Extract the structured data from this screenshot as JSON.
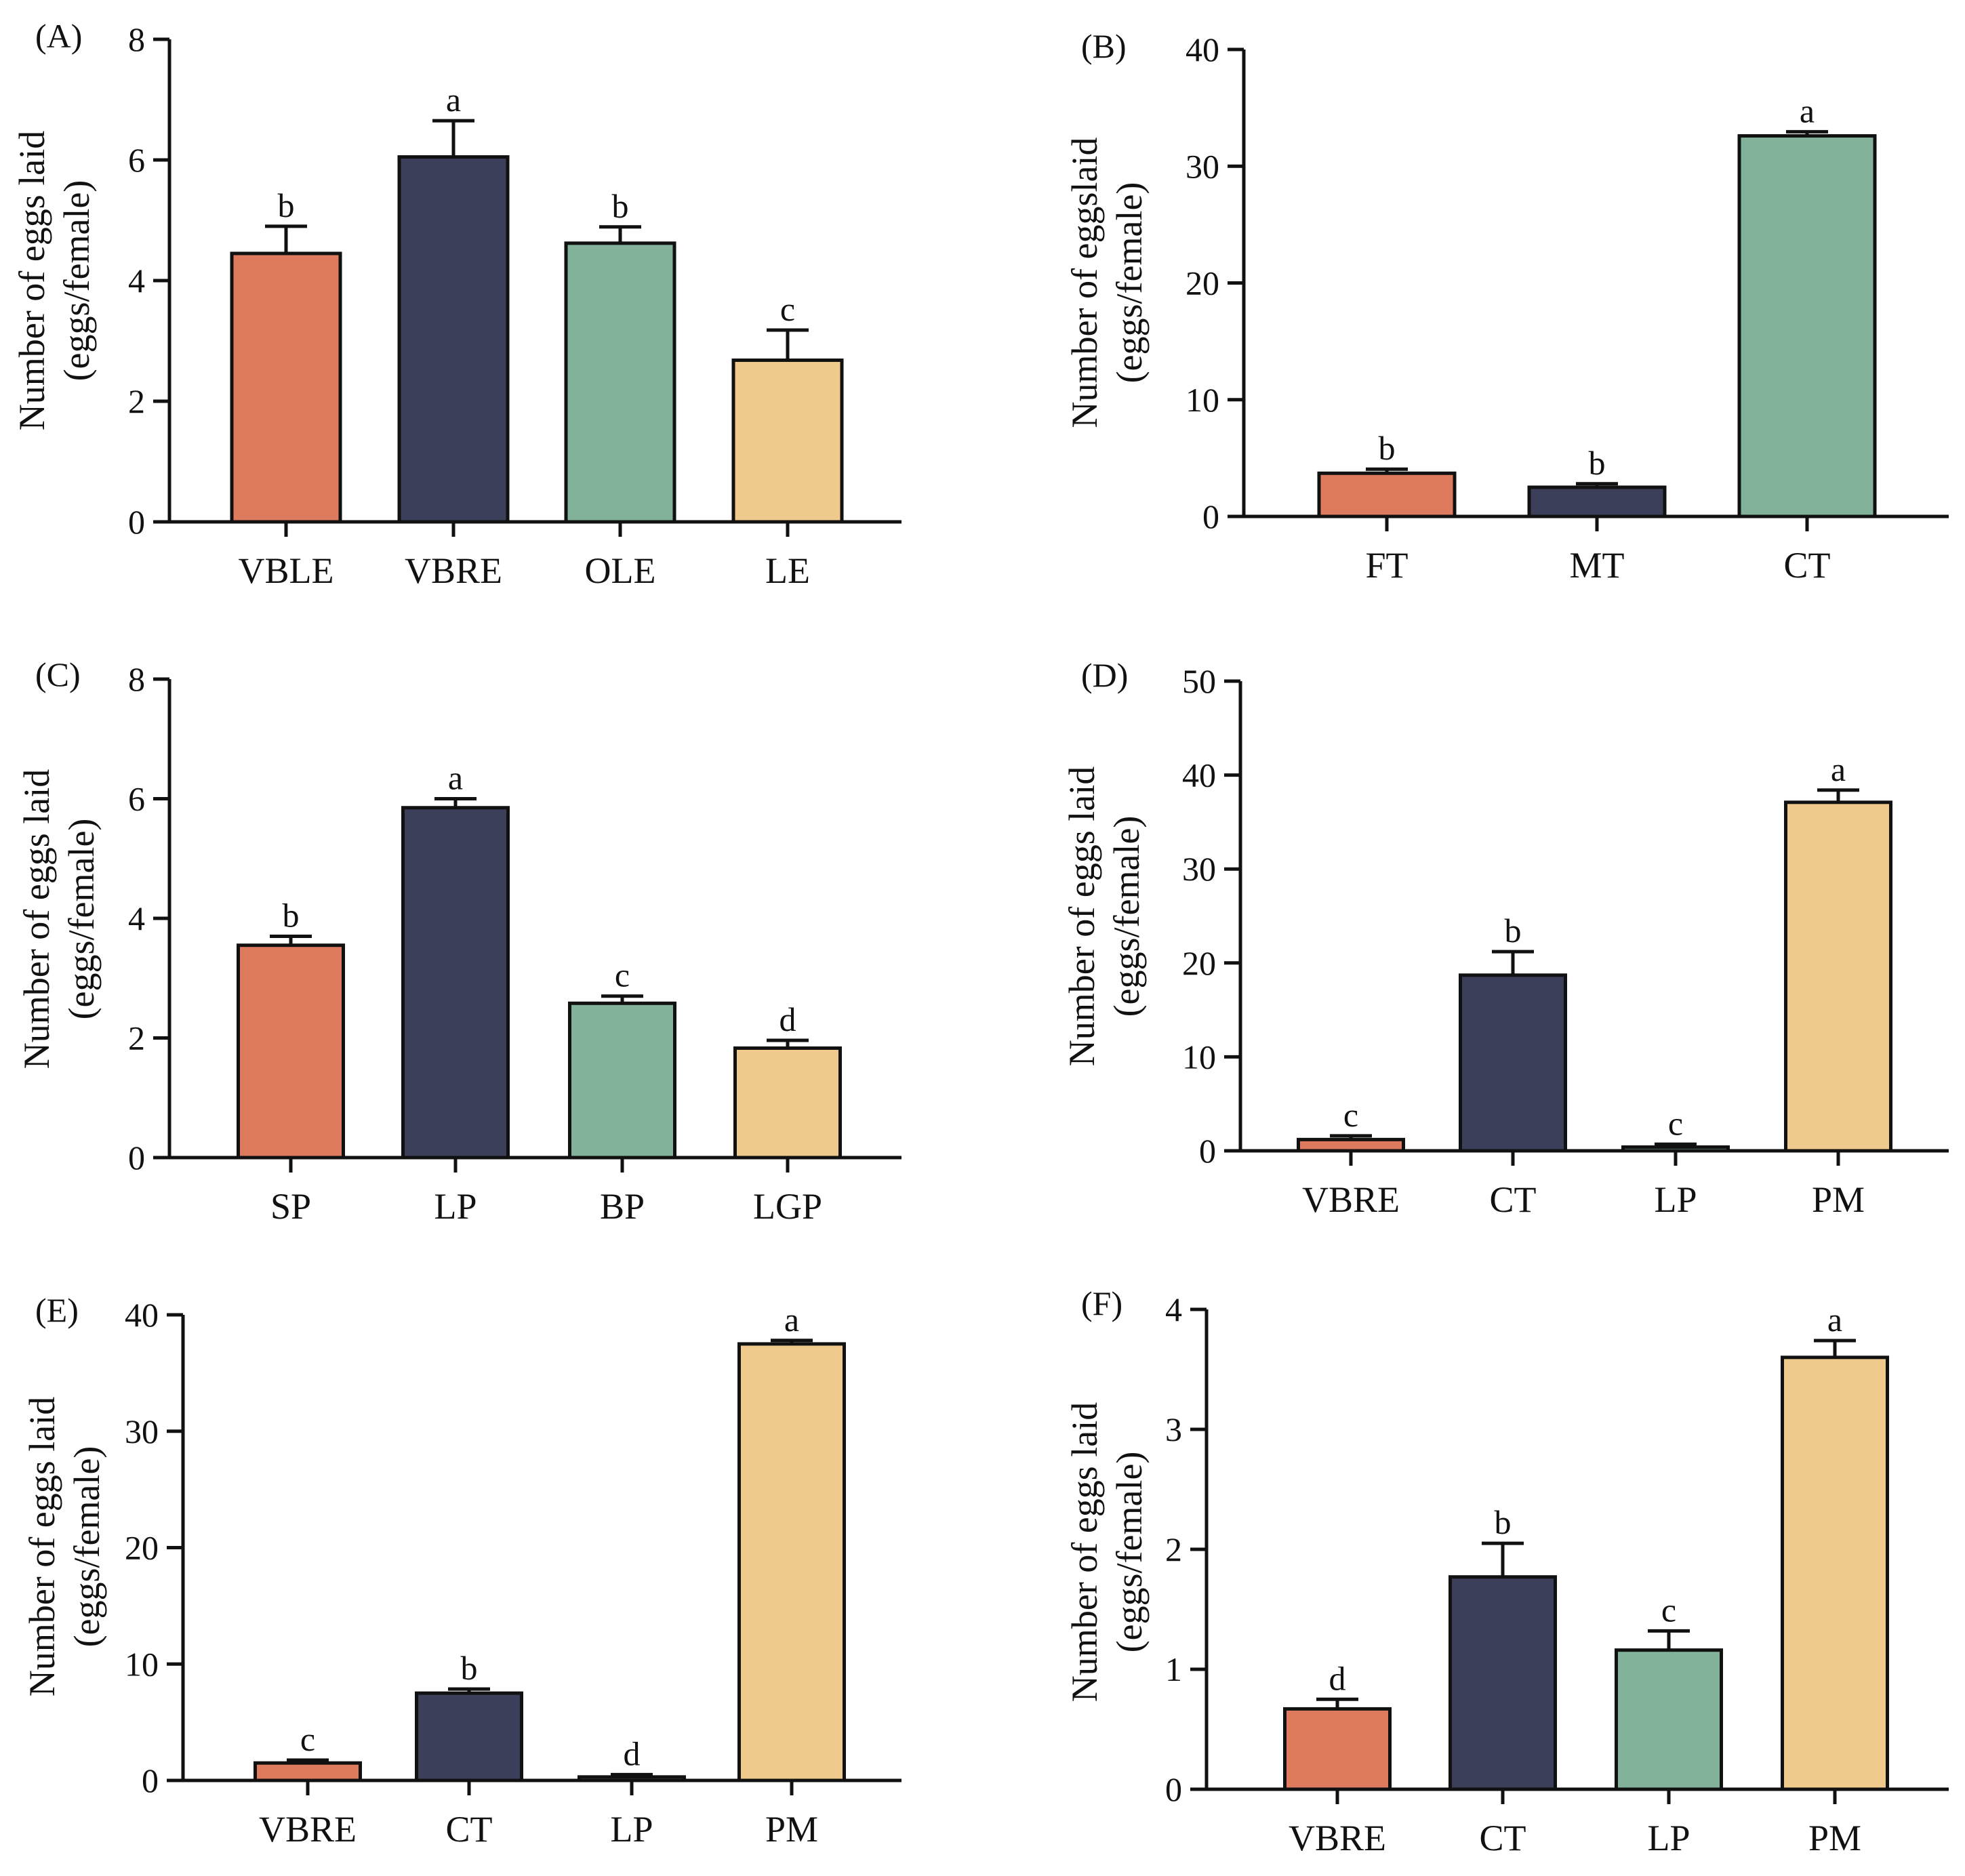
{
  "colors": {
    "coral": "#de7b5f",
    "navy": "#3b3f59",
    "sage": "#82b39a",
    "sand": "#f0c98c",
    "ink": "#111111"
  },
  "chart_data": [
    {
      "panel": "(A)",
      "type": "bar",
      "ylabel_line1": "Number of eggs laid",
      "ylabel_line2": "(eggs/female)",
      "ylim": [
        0,
        8
      ],
      "yticks": [
        0,
        2,
        4,
        6,
        8
      ],
      "categories": [
        "VBLE",
        "VBRE",
        "OLE",
        "LE"
      ],
      "values": [
        4.45,
        6.05,
        4.62,
        2.68
      ],
      "errors": [
        0.45,
        0.6,
        0.27,
        0.5
      ],
      "letters": [
        "b",
        "a",
        "b",
        "c"
      ],
      "colors": [
        "#de7b5f",
        "#3b3f59",
        "#82b39a",
        "#f0c98c"
      ]
    },
    {
      "panel": "(B)",
      "type": "bar",
      "ylabel_line1": "Number of eggslaid",
      "ylabel_line2": "(eggs/female)",
      "ylim": [
        0,
        40
      ],
      "yticks": [
        0,
        10,
        20,
        30,
        40
      ],
      "categories": [
        "FT",
        "MT",
        "CT"
      ],
      "values": [
        3.7,
        2.5,
        32.6
      ],
      "errors": [
        0.35,
        0.3,
        0.35
      ],
      "letters": [
        "b",
        "b",
        "a"
      ],
      "colors": [
        "#de7b5f",
        "#3b3f59",
        "#82b39a"
      ]
    },
    {
      "panel": "(C)",
      "type": "bar",
      "ylabel_line1": "Number of eggs laid",
      "ylabel_line2": "(eggs/female)",
      "ylim": [
        0,
        8
      ],
      "yticks": [
        0,
        2,
        4,
        6,
        8
      ],
      "categories": [
        "SP",
        "LP",
        "BP",
        "LGP"
      ],
      "values": [
        3.55,
        5.85,
        2.58,
        1.83
      ],
      "errors": [
        0.15,
        0.15,
        0.12,
        0.13
      ],
      "letters": [
        "b",
        "a",
        "c",
        "d"
      ],
      "colors": [
        "#de7b5f",
        "#3b3f59",
        "#82b39a",
        "#f0c98c"
      ]
    },
    {
      "panel": "(D)",
      "type": "bar",
      "ylabel_line1": "Number of eggs laid",
      "ylabel_line2": "(eggs/female)",
      "ylim": [
        0,
        50
      ],
      "yticks": [
        0,
        10,
        20,
        30,
        40,
        50
      ],
      "categories": [
        "VBRE",
        "CT",
        "LP",
        "PM"
      ],
      "values": [
        1.2,
        18.7,
        0.4,
        37.1
      ],
      "errors": [
        0.4,
        2.5,
        0.3,
        1.3
      ],
      "letters": [
        "c",
        "b",
        "c",
        "a"
      ],
      "colors": [
        "#de7b5f",
        "#3b3f59",
        "#82b39a",
        "#f0c98c"
      ]
    },
    {
      "panel": "(E)",
      "type": "bar",
      "ylabel_line1": "Number of eggs laid",
      "ylabel_line2": "(eggs/female)",
      "ylim": [
        0,
        40
      ],
      "yticks": [
        0,
        10,
        20,
        30,
        40
      ],
      "categories": [
        "VBRE",
        "CT",
        "LP",
        "PM"
      ],
      "values": [
        1.5,
        7.5,
        0.3,
        37.5
      ],
      "errors": [
        0.25,
        0.35,
        0.2,
        0.3
      ],
      "letters": [
        "c",
        "b",
        "d",
        "a"
      ],
      "colors": [
        "#de7b5f",
        "#3b3f59",
        "#82b39a",
        "#f0c98c"
      ]
    },
    {
      "panel": "(F)",
      "type": "bar",
      "ylabel_line1": "Number of eggs laid",
      "ylabel_line2": "(eggs/female)",
      "ylim": [
        0,
        4
      ],
      "yticks": [
        0,
        1,
        2,
        3,
        4
      ],
      "categories": [
        "VBRE",
        "CT",
        "LP",
        "PM"
      ],
      "values": [
        0.67,
        1.77,
        1.16,
        3.6
      ],
      "errors": [
        0.08,
        0.28,
        0.16,
        0.14
      ],
      "letters": [
        "d",
        "b",
        "c",
        "a"
      ],
      "colors": [
        "#de7b5f",
        "#3b3f59",
        "#82b39a",
        "#f0c98c"
      ]
    }
  ]
}
